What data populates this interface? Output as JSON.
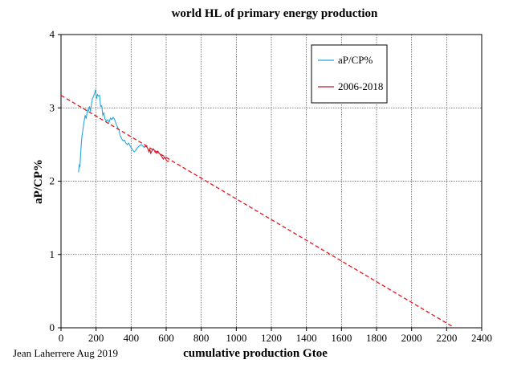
{
  "chart_data": {
    "type": "line",
    "title": "world HL of primary energy  production",
    "xlabel": "cumulative production Gtoe",
    "ylabel": "aP/CP%",
    "xlim": [
      0,
      2400
    ],
    "ylim": [
      0,
      4
    ],
    "x_ticks": [
      "0",
      "200",
      "400",
      "600",
      "800",
      "1000",
      "1200",
      "1400",
      "1600",
      "1800",
      "2000",
      "2200",
      "2400"
    ],
    "y_ticks": [
      "0",
      "1",
      "2",
      "3",
      "4"
    ],
    "grid": true,
    "legend_position": "top-right",
    "credit": "Jean Laherrere Aug 2019",
    "series": [
      {
        "name": "aP/CP%",
        "color": "#29a6dc",
        "style": "solid",
        "points": [
          [
            100,
            2.12
          ],
          [
            104,
            2.22
          ],
          [
            108,
            2.2
          ],
          [
            112,
            2.38
          ],
          [
            116,
            2.52
          ],
          [
            120,
            2.62
          ],
          [
            126,
            2.72
          ],
          [
            132,
            2.82
          ],
          [
            138,
            2.9
          ],
          [
            144,
            2.85
          ],
          [
            150,
            2.97
          ],
          [
            156,
            2.96
          ],
          [
            162,
            3.02
          ],
          [
            168,
            2.95
          ],
          [
            174,
            3.06
          ],
          [
            180,
            3.13
          ],
          [
            186,
            3.16
          ],
          [
            192,
            3.2
          ],
          [
            198,
            3.25
          ],
          [
            202,
            3.12
          ],
          [
            208,
            3.18
          ],
          [
            214,
            3.16
          ],
          [
            220,
            3.17
          ],
          [
            226,
            3.02
          ],
          [
            232,
            3.03
          ],
          [
            238,
            2.9
          ],
          [
            244,
            2.93
          ],
          [
            250,
            2.85
          ],
          [
            258,
            2.82
          ],
          [
            266,
            2.84
          ],
          [
            274,
            2.8
          ],
          [
            282,
            2.86
          ],
          [
            290,
            2.84
          ],
          [
            298,
            2.87
          ],
          [
            306,
            2.84
          ],
          [
            314,
            2.78
          ],
          [
            322,
            2.74
          ],
          [
            330,
            2.7
          ],
          [
            338,
            2.62
          ],
          [
            346,
            2.58
          ],
          [
            354,
            2.55
          ],
          [
            362,
            2.56
          ],
          [
            370,
            2.52
          ],
          [
            378,
            2.5
          ],
          [
            386,
            2.52
          ],
          [
            394,
            2.48
          ],
          [
            402,
            2.45
          ],
          [
            410,
            2.42
          ],
          [
            418,
            2.4
          ],
          [
            426,
            2.42
          ],
          [
            434,
            2.45
          ],
          [
            442,
            2.47
          ],
          [
            450,
            2.49
          ],
          [
            458,
            2.5
          ],
          [
            466,
            2.48
          ],
          [
            474,
            2.46
          ]
        ]
      },
      {
        "name": "2006-2018",
        "color": "#c0182a",
        "style": "solid",
        "points": [
          [
            474,
            2.46
          ],
          [
            484,
            2.48
          ],
          [
            494,
            2.45
          ],
          [
            502,
            2.4
          ],
          [
            506,
            2.44
          ],
          [
            512,
            2.38
          ],
          [
            520,
            2.42
          ],
          [
            528,
            2.44
          ],
          [
            536,
            2.4
          ],
          [
            544,
            2.38
          ],
          [
            552,
            2.41
          ],
          [
            560,
            2.38
          ],
          [
            568,
            2.36
          ],
          [
            576,
            2.33
          ],
          [
            584,
            2.3
          ],
          [
            592,
            2.33
          ],
          [
            600,
            2.29
          ],
          [
            608,
            2.27
          ],
          [
            616,
            2.28
          ]
        ]
      },
      {
        "name": "",
        "color": "#e8141c",
        "style": "dashed",
        "points": [
          [
            0,
            3.17
          ],
          [
            2245,
            0
          ]
        ]
      }
    ]
  }
}
